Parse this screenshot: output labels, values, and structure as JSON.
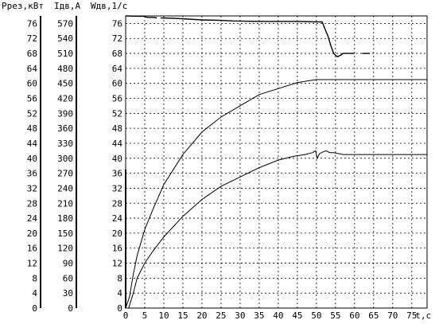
{
  "header": {
    "p_label": "Ррез,кВт",
    "i_label": "Iдв,А",
    "w_label": "Wдв,1/с"
  },
  "chart_data": {
    "type": "line",
    "grid": true,
    "x_axis": {
      "ticks": [
        "0",
        "5",
        "10",
        "15",
        "20",
        "25",
        "30",
        "35",
        "40",
        "45",
        "50",
        "55",
        "60",
        "65",
        "70",
        "75"
      ],
      "label": "t,с",
      "range": [
        0,
        79
      ]
    },
    "y_axes": [
      {
        "name": "Ррез,кВт",
        "ticks": [
          "76",
          "72",
          "68",
          "64",
          "60",
          "56",
          "52",
          "48",
          "44",
          "40",
          "36",
          "32",
          "28",
          "24",
          "20",
          "16",
          "12",
          "8",
          "4",
          "0"
        ],
        "range": [
          0,
          78
        ]
      },
      {
        "name": "Iдв,А",
        "ticks": [
          "570",
          "540",
          "510",
          "480",
          "450",
          "420",
          "390",
          "360",
          "330",
          "300",
          "270",
          "240",
          "210",
          "180",
          "150",
          "120",
          "90",
          "60",
          "30",
          "0"
        ],
        "range": [
          0,
          585
        ]
      },
      {
        "name": "Wдв,1/с",
        "ticks": [
          "76",
          "72",
          "68",
          "64",
          "60",
          "56",
          "52",
          "48",
          "44",
          "40",
          "36",
          "32",
          "28",
          "24",
          "20",
          "16",
          "12",
          "8",
          "4",
          "0"
        ],
        "range": [
          0,
          78
        ]
      }
    ],
    "series": [
      {
        "axis": "Iдв,А",
        "segments": [
          [
            [
              0,
              585
            ],
            [
              5,
              584
            ],
            [
              5.1,
              583
            ],
            [
              6,
              582
            ],
            [
              6.8,
              582
            ],
            [
              7.5,
              582
            ],
            [
              8.2,
              581
            ]
          ],
          [
            [
              9.2,
              581
            ],
            [
              13,
              580
            ],
            [
              20,
              577
            ],
            [
              25,
              576
            ],
            [
              28,
              575
            ],
            [
              35,
              574
            ],
            [
              40,
              574
            ],
            [
              45,
              574
            ],
            [
              50,
              573
            ],
            [
              51.5,
              573
            ],
            [
              52.2,
              560
            ],
            [
              53,
              545
            ],
            [
              53.8,
              525
            ],
            [
              54.5,
              510
            ],
            [
              55.5,
              503
            ],
            [
              56.5,
              507
            ],
            [
              57,
              510
            ],
            [
              58.5,
              510
            ],
            [
              60,
              510
            ]
          ],
          [
            [
              62,
              510
            ],
            [
              64,
              510
            ]
          ]
        ]
      },
      {
        "axis": "Wдв,1/с",
        "segments": [
          [
            [
              0,
              0
            ],
            [
              1,
              3
            ],
            [
              2,
              9
            ],
            [
              3,
              14
            ],
            [
              5,
              21
            ],
            [
              7,
              26
            ],
            [
              10,
              33
            ],
            [
              15,
              41
            ],
            [
              20,
              47
            ],
            [
              25,
              51
            ],
            [
              30,
              54
            ],
            [
              35,
              57
            ],
            [
              40,
              58.6
            ],
            [
              45,
              60.2
            ],
            [
              48,
              60.7
            ],
            [
              50,
              61
            ],
            [
              75,
              61
            ],
            [
              79,
              61
            ]
          ]
        ]
      },
      {
        "axis": "Ррез,кВт",
        "segments": [
          [
            [
              0.8,
              0
            ],
            [
              2,
              4
            ],
            [
              3,
              8
            ],
            [
              4,
              10
            ],
            [
              5,
              12
            ],
            [
              7,
              15
            ],
            [
              10,
              19
            ],
            [
              15,
              24.5
            ],
            [
              20,
              29
            ],
            [
              25,
              32.5
            ],
            [
              30,
              35
            ],
            [
              35,
              37.5
            ],
            [
              40,
              39.5
            ],
            [
              44,
              40.5
            ],
            [
              47,
              41
            ],
            [
              49,
              41.5
            ],
            [
              49.8,
              42
            ],
            [
              50.2,
              40
            ],
            [
              50.8,
              41.2
            ],
            [
              51.5,
              41.6
            ],
            [
              52.5,
              42
            ],
            [
              53.5,
              41.5
            ],
            [
              54.5,
              41.5
            ],
            [
              57,
              41
            ],
            [
              75,
              41
            ],
            [
              79,
              41
            ]
          ]
        ]
      }
    ],
    "spikes": [
      [
        0,
        0
      ],
      [
        0,
        37
      ]
    ]
  }
}
